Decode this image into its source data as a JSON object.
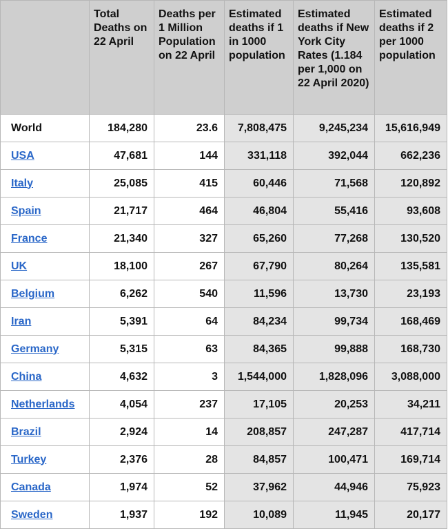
{
  "headers": [
    "",
    "Total Deaths on 22 April",
    "Deaths per 1 Million Population on 22 April",
    "Estimated deaths if 1 in 1000 population",
    "Estimated deaths if New York City Rates (1.184 per 1,000 on 22 April 2020)",
    "Estimated deaths if 2 per 1000 population"
  ],
  "rows": [
    {
      "country": "World",
      "total_deaths": "184,280",
      "deaths_per_million": "23.6",
      "est_1_in_1000": "7,808,475",
      "est_nyc_rate": "9,245,234",
      "est_2_per_1000": "15,616,949"
    },
    {
      "country": "USA",
      "total_deaths": "47,681",
      "deaths_per_million": "144",
      "est_1_in_1000": "331,118",
      "est_nyc_rate": "392,044",
      "est_2_per_1000": "662,236"
    },
    {
      "country": "Italy",
      "total_deaths": "25,085",
      "deaths_per_million": "415",
      "est_1_in_1000": "60,446",
      "est_nyc_rate": "71,568",
      "est_2_per_1000": "120,892"
    },
    {
      "country": "Spain",
      "total_deaths": "21,717",
      "deaths_per_million": "464",
      "est_1_in_1000": "46,804",
      "est_nyc_rate": "55,416",
      "est_2_per_1000": "93,608"
    },
    {
      "country": "France",
      "total_deaths": "21,340",
      "deaths_per_million": "327",
      "est_1_in_1000": "65,260",
      "est_nyc_rate": "77,268",
      "est_2_per_1000": "130,520"
    },
    {
      "country": "UK",
      "total_deaths": "18,100",
      "deaths_per_million": "267",
      "est_1_in_1000": "67,790",
      "est_nyc_rate": "80,264",
      "est_2_per_1000": "135,581"
    },
    {
      "country": "Belgium",
      "total_deaths": "6,262",
      "deaths_per_million": "540",
      "est_1_in_1000": "11,596",
      "est_nyc_rate": "13,730",
      "est_2_per_1000": "23,193"
    },
    {
      "country": "Iran",
      "total_deaths": "5,391",
      "deaths_per_million": "64",
      "est_1_in_1000": "84,234",
      "est_nyc_rate": "99,734",
      "est_2_per_1000": "168,469"
    },
    {
      "country": "Germany",
      "total_deaths": "5,315",
      "deaths_per_million": "63",
      "est_1_in_1000": "84,365",
      "est_nyc_rate": "99,888",
      "est_2_per_1000": "168,730"
    },
    {
      "country": "China",
      "total_deaths": "4,632",
      "deaths_per_million": "3",
      "est_1_in_1000": "1,544,000",
      "est_nyc_rate": "1,828,096",
      "est_2_per_1000": "3,088,000"
    },
    {
      "country": "Netherlands",
      "total_deaths": "4,054",
      "deaths_per_million": "237",
      "est_1_in_1000": "17,105",
      "est_nyc_rate": "20,253",
      "est_2_per_1000": "34,211"
    },
    {
      "country": "Brazil",
      "total_deaths": "2,924",
      "deaths_per_million": "14",
      "est_1_in_1000": "208,857",
      "est_nyc_rate": "247,287",
      "est_2_per_1000": "417,714"
    },
    {
      "country": "Turkey",
      "total_deaths": "2,376",
      "deaths_per_million": "28",
      "est_1_in_1000": "84,857",
      "est_nyc_rate": "100,471",
      "est_2_per_1000": "169,714"
    },
    {
      "country": "Canada",
      "total_deaths": "1,974",
      "deaths_per_million": "52",
      "est_1_in_1000": "37,962",
      "est_nyc_rate": "44,946",
      "est_2_per_1000": "75,923"
    },
    {
      "country": "Sweden",
      "total_deaths": "1,937",
      "deaths_per_million": "192",
      "est_1_in_1000": "10,089",
      "est_nyc_rate": "11,945",
      "est_2_per_1000": "20,177"
    }
  ],
  "colors": {
    "header_bg": "#cfcfcf",
    "shaded_col_bg": "#e4e4e4",
    "link": "#2a67c8",
    "border": "#b7b7b7",
    "text": "#111111"
  }
}
